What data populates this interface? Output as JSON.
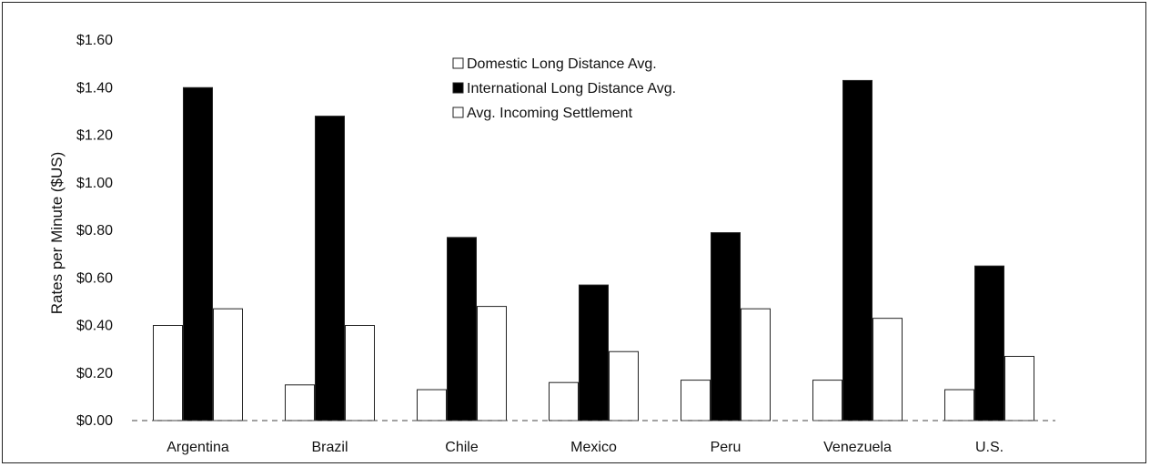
{
  "chart_data": {
    "type": "bar",
    "ylabel": "Rates per Minute ($US)",
    "xlabel": "",
    "ylim": [
      0,
      1.6
    ],
    "y_ticks": [
      0,
      0.2,
      0.4,
      0.6,
      0.8,
      1.0,
      1.2,
      1.4,
      1.6
    ],
    "y_tick_labels": [
      "$0.00",
      "$0.20",
      "$0.40",
      "$0.60",
      "$0.80",
      "$1.00",
      "$1.20",
      "$1.40",
      "$1.60"
    ],
    "categories": [
      "Argentina",
      "Brazil",
      "Chile",
      "Mexico",
      "Peru",
      "Venezuela",
      "U.S."
    ],
    "series": [
      {
        "name": "Domestic Long Distance Avg.",
        "color": "#ffffff",
        "values": [
          0.4,
          0.15,
          0.13,
          0.16,
          0.17,
          0.17,
          0.13
        ]
      },
      {
        "name": "International Long Distance Avg.",
        "color": "#000000",
        "values": [
          1.4,
          1.28,
          0.77,
          0.57,
          0.79,
          1.43,
          0.65
        ]
      },
      {
        "name": "Avg. Incoming Settlement",
        "color": "#ffffff",
        "values": [
          0.47,
          0.4,
          0.48,
          0.29,
          0.47,
          0.43,
          0.27
        ]
      }
    ],
    "legend_position": "top-center",
    "grid": false
  }
}
